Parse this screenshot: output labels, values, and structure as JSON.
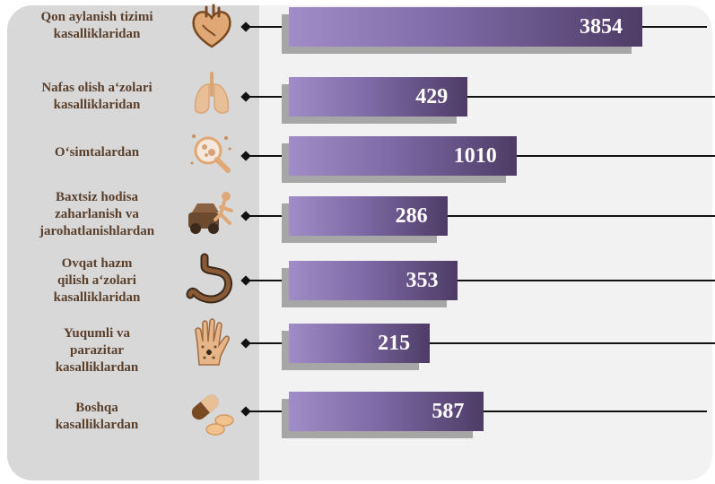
{
  "chart_data": {
    "type": "bar",
    "orientation": "horizontal",
    "categories": [
      "Qon aylanish tizimi\nkasalliklaridan",
      "Nafas olish a‘zolari\nkasalliklaridan",
      "O‘simtalardan",
      "Baxtsiz hodisa\nzaharlanish va\njarohatlanishlardan",
      "Ovqat hazm\nqilish a‘zolari\nkasalliklaridan",
      "Yuqumli va\nparazitar\nkasalliklardan",
      "Boshqa\nkasalliklardan"
    ],
    "values": [
      3854,
      429,
      1010,
      286,
      353,
      215,
      587
    ],
    "value_labels": [
      "3854",
      "429",
      "1010",
      "286",
      "353",
      "215",
      "587"
    ],
    "icons": [
      "heart-icon",
      "lungs-icon",
      "microscope-icon",
      "car-accident-icon",
      "stomach-icon",
      "hand-icon",
      "pills-icon"
    ],
    "colors": {
      "bar_start": "#a08cc6",
      "bar_end": "#4e3c66",
      "shadow": "#a6a6a6",
      "label": "#5a3f2a",
      "icon": "#e0a874",
      "icon_stroke": "#7a4a22"
    }
  }
}
